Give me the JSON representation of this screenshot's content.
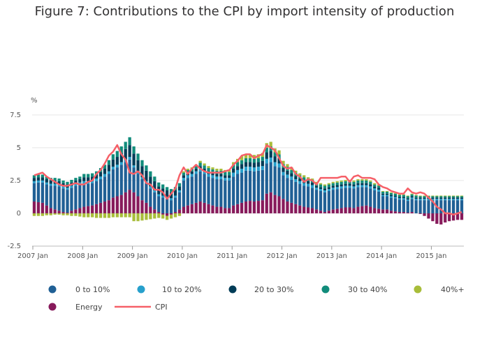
{
  "chart_data": {
    "type": "bar",
    "stacked": true,
    "title": "Figure 7: Contributions to the CPI by import intensity of production",
    "ylabel": "%",
    "xlabel": "",
    "ylim": [
      -2.5,
      8.5
    ],
    "yticks": [
      -2.5,
      0,
      2.5,
      5,
      7.5
    ],
    "ytick_labels": [
      "-2.5",
      "0",
      "2.5",
      "5",
      "7.5"
    ],
    "x_start": "2007 Jan",
    "months": 104,
    "xticks": [
      {
        "index": 0,
        "label": "2007 Jan"
      },
      {
        "index": 12,
        "label": "2008 Jan"
      },
      {
        "index": 24,
        "label": "2009 Jan"
      },
      {
        "index": 36,
        "label": "2010 Jan"
      },
      {
        "index": 48,
        "label": "2011 Jan"
      },
      {
        "index": 60,
        "label": "2012 Jan"
      },
      {
        "index": 72,
        "label": "2013 Jan"
      },
      {
        "index": 84,
        "label": "2014 Jan"
      },
      {
        "index": 96,
        "label": "2015 Jan"
      }
    ],
    "grid": true,
    "legend_position": "bottom",
    "colors": {
      "0 to 10%": "#206095",
      "10 to 20%": "#27a0cc",
      "20 to 30%": "#003c57",
      "30 to 40%": "#118c7b",
      "40%+": "#a8bd3a",
      "Energy": "#871a5b",
      "CPI": "#f66068"
    },
    "series": [
      {
        "name": "Energy",
        "values": [
          0.9,
          0.85,
          0.8,
          0.6,
          0.4,
          0.3,
          0.2,
          0.1,
          0.05,
          0.2,
          0.3,
          0.4,
          0.5,
          0.55,
          0.6,
          0.7,
          0.8,
          0.9,
          1.0,
          1.2,
          1.3,
          1.4,
          1.6,
          1.8,
          1.6,
          1.3,
          1.0,
          0.8,
          0.5,
          0.3,
          0.1,
          -0.1,
          -0.2,
          -0.1,
          0.1,
          0.3,
          0.5,
          0.6,
          0.7,
          0.8,
          0.9,
          0.8,
          0.7,
          0.6,
          0.5,
          0.5,
          0.4,
          0.4,
          0.6,
          0.7,
          0.8,
          0.9,
          0.95,
          0.9,
          0.95,
          1.0,
          1.5,
          1.6,
          1.4,
          1.3,
          1.1,
          0.9,
          0.8,
          0.7,
          0.6,
          0.5,
          0.45,
          0.4,
          0.3,
          0.2,
          0.1,
          0.2,
          0.3,
          0.35,
          0.4,
          0.45,
          0.45,
          0.4,
          0.5,
          0.55,
          0.6,
          0.5,
          0.4,
          0.35,
          0.3,
          0.3,
          0.2,
          0.15,
          0.1,
          0.1,
          0.05,
          0.1,
          0.0,
          -0.05,
          -0.2,
          -0.4,
          -0.6,
          -0.8,
          -0.85,
          -0.7,
          -0.6,
          -0.55,
          -0.5,
          -0.5
        ]
      },
      {
        "name": "0 to 10%",
        "values": [
          1.4,
          1.5,
          1.55,
          1.6,
          1.7,
          1.8,
          1.85,
          1.8,
          1.75,
          1.75,
          1.8,
          1.8,
          1.75,
          1.7,
          1.7,
          1.75,
          1.8,
          1.9,
          2.0,
          2.15,
          2.2,
          2.3,
          2.3,
          2.3,
          1.9,
          1.7,
          1.6,
          1.5,
          1.4,
          1.3,
          1.2,
          1.2,
          1.1,
          1.0,
          1.1,
          1.3,
          2.0,
          2.1,
          2.1,
          2.2,
          2.3,
          2.2,
          2.1,
          2.1,
          2.1,
          2.1,
          2.1,
          2.1,
          2.2,
          2.3,
          2.3,
          2.35,
          2.3,
          2.3,
          2.3,
          2.3,
          2.3,
          2.3,
          2.2,
          2.2,
          1.8,
          1.8,
          1.75,
          1.7,
          1.65,
          1.6,
          1.6,
          1.55,
          1.5,
          1.5,
          1.5,
          1.5,
          1.5,
          1.5,
          1.5,
          1.5,
          1.5,
          1.5,
          1.5,
          1.45,
          1.4,
          1.4,
          1.35,
          1.3,
          1.0,
          1.0,
          1.0,
          1.0,
          0.95,
          0.95,
          0.9,
          1.0,
          1.0,
          1.0,
          1.0,
          1.0,
          1.0,
          1.0,
          1.0,
          1.0,
          1.0,
          1.0,
          1.0,
          1.0
        ]
      },
      {
        "name": "10 to 20%",
        "values": [
          0.15,
          0.15,
          0.15,
          0.15,
          0.15,
          0.15,
          0.15,
          0.15,
          0.15,
          0.15,
          0.15,
          0.15,
          0.2,
          0.2,
          0.2,
          0.2,
          0.2,
          0.2,
          0.2,
          0.2,
          0.2,
          0.2,
          0.2,
          0.2,
          0.15,
          0.15,
          0.15,
          0.15,
          0.15,
          0.15,
          0.15,
          0.15,
          0.15,
          0.15,
          0.15,
          0.15,
          0.2,
          0.2,
          0.2,
          0.2,
          0.2,
          0.2,
          0.2,
          0.2,
          0.2,
          0.2,
          0.2,
          0.2,
          0.3,
          0.3,
          0.3,
          0.3,
          0.3,
          0.3,
          0.3,
          0.3,
          0.35,
          0.35,
          0.3,
          0.3,
          0.25,
          0.25,
          0.25,
          0.2,
          0.2,
          0.2,
          0.2,
          0.2,
          0.15,
          0.15,
          0.15,
          0.15,
          0.15,
          0.15,
          0.15,
          0.15,
          0.15,
          0.15,
          0.15,
          0.15,
          0.15,
          0.15,
          0.15,
          0.15,
          0.1,
          0.1,
          0.1,
          0.1,
          0.1,
          0.1,
          0.1,
          0.1,
          0.1,
          0.1,
          0.1,
          0.1,
          0.1,
          0.1,
          0.1,
          0.1,
          0.1,
          0.1,
          0.1,
          0.1
        ]
      },
      {
        "name": "20 to 30%",
        "values": [
          0.25,
          0.25,
          0.25,
          0.25,
          0.25,
          0.25,
          0.25,
          0.25,
          0.25,
          0.25,
          0.25,
          0.25,
          0.3,
          0.3,
          0.3,
          0.3,
          0.35,
          0.4,
          0.5,
          0.55,
          0.6,
          0.7,
          0.8,
          0.9,
          0.9,
          0.9,
          0.85,
          0.8,
          0.75,
          0.7,
          0.6,
          0.55,
          0.5,
          0.45,
          0.4,
          0.3,
          0.2,
          0.2,
          0.2,
          0.2,
          0.2,
          0.2,
          0.2,
          0.2,
          0.2,
          0.2,
          0.2,
          0.2,
          0.3,
          0.3,
          0.35,
          0.35,
          0.35,
          0.35,
          0.35,
          0.4,
          0.5,
          0.5,
          0.45,
          0.4,
          0.3,
          0.3,
          0.25,
          0.25,
          0.2,
          0.2,
          0.2,
          0.2,
          0.15,
          0.15,
          0.15,
          0.15,
          0.15,
          0.15,
          0.15,
          0.15,
          0.15,
          0.15,
          0.15,
          0.15,
          0.15,
          0.15,
          0.15,
          0.15,
          0.1,
          0.1,
          0.1,
          0.1,
          0.1,
          0.1,
          0.1,
          0.1,
          0.1,
          0.1,
          0.1,
          0.1,
          0.1,
          0.1,
          0.1,
          0.1,
          0.1,
          0.1,
          0.1,
          0.1
        ]
      },
      {
        "name": "30 to 40%",
        "values": [
          0.2,
          0.2,
          0.2,
          0.2,
          0.2,
          0.2,
          0.2,
          0.2,
          0.2,
          0.2,
          0.2,
          0.2,
          0.25,
          0.25,
          0.25,
          0.25,
          0.3,
          0.3,
          0.35,
          0.4,
          0.45,
          0.5,
          0.55,
          0.6,
          0.55,
          0.5,
          0.45,
          0.4,
          0.4,
          0.35,
          0.3,
          0.3,
          0.25,
          0.25,
          0.25,
          0.25,
          0.2,
          0.2,
          0.2,
          0.2,
          0.25,
          0.25,
          0.25,
          0.25,
          0.25,
          0.25,
          0.25,
          0.25,
          0.3,
          0.3,
          0.3,
          0.3,
          0.3,
          0.3,
          0.3,
          0.3,
          0.35,
          0.35,
          0.3,
          0.3,
          0.3,
          0.3,
          0.25,
          0.25,
          0.25,
          0.25,
          0.2,
          0.2,
          0.2,
          0.2,
          0.2,
          0.2,
          0.2,
          0.2,
          0.2,
          0.2,
          0.2,
          0.2,
          0.2,
          0.2,
          0.2,
          0.2,
          0.15,
          0.15,
          0.15,
          0.15,
          0.15,
          0.15,
          0.15,
          0.15,
          0.15,
          0.15,
          0.15,
          0.1,
          0.1,
          0.1,
          0.1,
          0.1,
          0.1,
          0.1,
          0.1,
          0.1,
          0.1,
          0.1
        ]
      },
      {
        "name": "40%+",
        "values": [
          -0.2,
          -0.2,
          -0.2,
          -0.15,
          -0.15,
          -0.1,
          -0.1,
          -0.15,
          -0.15,
          -0.2,
          -0.2,
          -0.25,
          -0.3,
          -0.3,
          -0.3,
          -0.35,
          -0.35,
          -0.35,
          -0.35,
          -0.3,
          -0.3,
          -0.3,
          -0.3,
          -0.3,
          -0.6,
          -0.6,
          -0.55,
          -0.5,
          -0.45,
          -0.4,
          -0.35,
          -0.3,
          -0.3,
          -0.3,
          -0.3,
          -0.2,
          0.1,
          0.1,
          0.1,
          0.1,
          0.15,
          0.15,
          0.15,
          0.15,
          0.15,
          0.15,
          0.15,
          0.15,
          0.2,
          0.25,
          0.3,
          0.3,
          0.3,
          0.3,
          0.3,
          0.3,
          0.35,
          0.35,
          0.3,
          0.3,
          0.25,
          0.2,
          0.2,
          0.15,
          0.15,
          0.15,
          0.1,
          0.1,
          0.1,
          0.1,
          0.1,
          0.1,
          0.1,
          0.1,
          0.1,
          0.1,
          0.1,
          0.1,
          0.1,
          0.1,
          0.1,
          0.1,
          0.1,
          0.1,
          0.05,
          0.05,
          0.05,
          0.05,
          0.05,
          0.05,
          0.05,
          0.05,
          0.05,
          0.05,
          0.05,
          0.05,
          0.05,
          0.05,
          0.05,
          0.05,
          0.05,
          0.05,
          0.05,
          0.05
        ]
      },
      {
        "name": "CPI",
        "type": "line",
        "values": [
          2.9,
          3.0,
          3.1,
          2.8,
          2.6,
          2.4,
          2.2,
          2.1,
          2.1,
          2.2,
          2.3,
          2.2,
          2.2,
          2.4,
          2.5,
          3.0,
          3.3,
          3.8,
          4.4,
          4.7,
          5.2,
          4.5,
          4.1,
          3.1,
          3.0,
          3.2,
          2.9,
          2.3,
          2.2,
          1.8,
          1.8,
          1.6,
          1.1,
          1.5,
          1.9,
          2.9,
          3.5,
          3.0,
          3.4,
          3.7,
          3.4,
          3.2,
          3.1,
          3.1,
          3.1,
          3.1,
          3.2,
          3.3,
          3.7,
          4.0,
          4.4,
          4.5,
          4.5,
          4.2,
          4.4,
          4.5,
          5.2,
          5.0,
          4.8,
          4.2,
          3.6,
          3.4,
          3.5,
          3.0,
          2.8,
          2.4,
          2.6,
          2.5,
          2.2,
          2.7,
          2.7,
          2.7,
          2.7,
          2.7,
          2.8,
          2.8,
          2.4,
          2.8,
          2.9,
          2.7,
          2.7,
          2.7,
          2.6,
          2.2,
          2.0,
          1.9,
          1.7,
          1.6,
          1.5,
          1.5,
          1.9,
          1.6,
          1.5,
          1.6,
          1.5,
          1.2,
          0.9,
          0.5,
          0.3,
          0.0,
          0.0,
          -0.1,
          0.0,
          0.1
        ]
      }
    ]
  },
  "legend": {
    "items": [
      {
        "label": "0 to 10%",
        "color": "#206095"
      },
      {
        "label": "10 to 20%",
        "color": "#27a0cc"
      },
      {
        "label": "20 to 30%",
        "color": "#003c57"
      },
      {
        "label": "30 to 40%",
        "color": "#118c7b"
      },
      {
        "label": "40%+",
        "color": "#a8bd3a"
      },
      {
        "label": "Energy",
        "color": "#871a5b"
      },
      {
        "label": "CPI",
        "color": "#f66068"
      }
    ]
  }
}
